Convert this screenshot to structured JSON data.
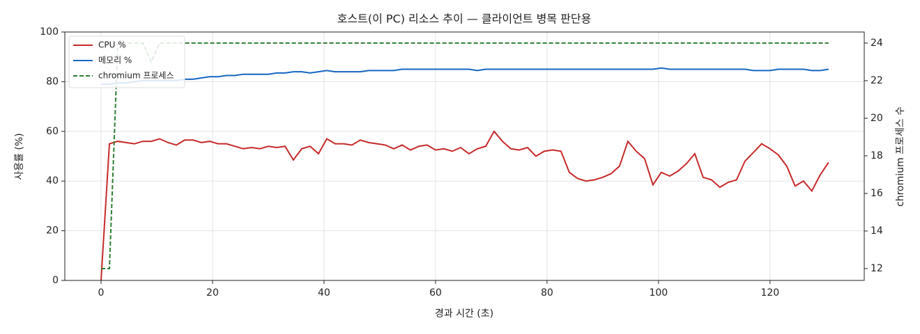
{
  "chart_data": {
    "type": "line",
    "title": "호스트(이 PC) 리소스 추이 — 클라이언트 병목 판단용",
    "xlabel": "경과 시간 (초)",
    "ylabel": "사용률 (%)",
    "y2label": "chromium 프로세스 수",
    "x": [
      0,
      1.5,
      3,
      4.5,
      6,
      7.5,
      9,
      10.5,
      12,
      13.5,
      15,
      16.5,
      18,
      19.5,
      21,
      22.5,
      24,
      25.5,
      27,
      28.5,
      30,
      31.5,
      33,
      34.5,
      36,
      37.5,
      39,
      40.5,
      42,
      43.5,
      45,
      46.5,
      48,
      49.5,
      51,
      52.5,
      54,
      55.5,
      57,
      58.5,
      60,
      61.5,
      63,
      64.5,
      66,
      67.5,
      69,
      70.5,
      72,
      73.5,
      75,
      76.5,
      78,
      79.5,
      81,
      82.5,
      84,
      85.5,
      87,
      88.5,
      90,
      91.5,
      93,
      94.5,
      96,
      97.5,
      99,
      100.5,
      102,
      103.5,
      105,
      106.5,
      108,
      109.5,
      111,
      112.5,
      114,
      115.5,
      117,
      118.5,
      120,
      121.5,
      123,
      124.5,
      126,
      127.5,
      129,
      130.5
    ],
    "series": [
      {
        "name": "CPU %",
        "color": "#c62828",
        "dash": false,
        "values": [
          0,
          55,
          56,
          55.5,
          55,
          56,
          56,
          57,
          55.5,
          54.5,
          56.5,
          56.5,
          55.5,
          56,
          55,
          55,
          54,
          53,
          53.5,
          53,
          54,
          53.5,
          54,
          48.5,
          53,
          54,
          51,
          57,
          55,
          55,
          54.5,
          56.5,
          55.5,
          55,
          54.5,
          53,
          54.5,
          52.5,
          54,
          54.5,
          52.5,
          53,
          52,
          53.5,
          51,
          53,
          54,
          60,
          56,
          53,
          52.5,
          53.5,
          50,
          52,
          52.5,
          52,
          43.5,
          41,
          40,
          40.5,
          41.5,
          43,
          46,
          56,
          52,
          49,
          38.5,
          43.5,
          42,
          44,
          47,
          51,
          41.5,
          40.5,
          37.5,
          39.5,
          40.5,
          48,
          51.5,
          55,
          53,
          50.5,
          46,
          38,
          40,
          36,
          42.5,
          47.5
        ]
      },
      {
        "name": "메모리 %",
        "color": "#1565c0",
        "dash": false,
        "values": [
          79,
          79,
          79.5,
          79.5,
          80,
          80.5,
          80.5,
          80.5,
          80.5,
          80.5,
          81,
          81,
          81.5,
          82,
          82,
          82.5,
          82.5,
          83,
          83,
          83,
          83,
          83.5,
          83.5,
          84,
          84,
          83.5,
          84,
          84.5,
          84,
          84,
          84,
          84,
          84.5,
          84.5,
          84.5,
          84.5,
          85,
          85,
          85,
          85,
          85,
          85,
          85,
          85,
          85,
          84.5,
          85,
          85,
          85,
          85,
          85,
          85,
          85,
          85,
          85,
          85,
          85,
          85,
          85,
          85,
          85,
          85,
          85,
          85,
          85,
          85,
          85,
          85.5,
          85,
          85,
          85,
          85,
          85,
          85,
          85,
          85,
          85,
          85,
          84.5,
          84.5,
          84.5,
          85,
          85,
          85,
          85,
          84.5,
          84.5,
          85
        ]
      },
      {
        "name": "chromium 프로세스",
        "color": "#2e7d32",
        "dash": true,
        "axis": "y2",
        "values": [
          12,
          12,
          24,
          24,
          24,
          24,
          23,
          24,
          24,
          24,
          24,
          24,
          24,
          24,
          24,
          24,
          24,
          24,
          24,
          24,
          24,
          24,
          24,
          24,
          24,
          24,
          24,
          24,
          24,
          24,
          24,
          24,
          24,
          24,
          24,
          24,
          24,
          24,
          24,
          24,
          24,
          24,
          24,
          24,
          24,
          24,
          24,
          24,
          24,
          24,
          24,
          24,
          24,
          24,
          24,
          24,
          24,
          24,
          24,
          24,
          24,
          24,
          24,
          24,
          24,
          24,
          24,
          24,
          24,
          24,
          24,
          24,
          24,
          24,
          24,
          24,
          24,
          24,
          24,
          24,
          24,
          24,
          24,
          24,
          24,
          24,
          24,
          24
        ]
      }
    ],
    "xlim": [
      -6.5,
      136.9
    ],
    "xticks": [
      0,
      20,
      40,
      60,
      80,
      100,
      120
    ],
    "ylim": [
      0,
      100
    ],
    "yticks": [
      0,
      20,
      40,
      60,
      80,
      100
    ],
    "y2lim": [
      11.37,
      24.59
    ],
    "y2ticks": [
      12,
      14,
      16,
      18,
      20,
      22,
      24
    ],
    "grid": true,
    "legend": "upper left"
  }
}
